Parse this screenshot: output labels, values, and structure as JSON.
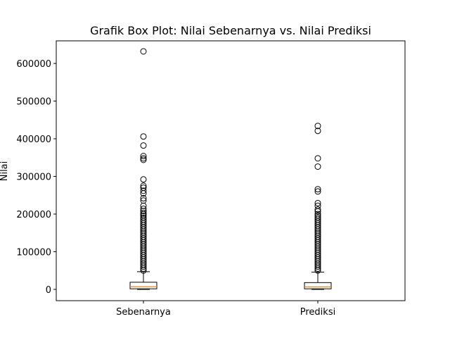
{
  "chart_data": {
    "type": "boxplot",
    "title": "Grafik Box Plot: Nilai Sebenarnya vs. Nilai Prediksi",
    "xlabel": "",
    "ylabel": "Nilai",
    "ylim": [
      -30000,
      660000
    ],
    "yticks": [
      0,
      100000,
      200000,
      300000,
      400000,
      500000,
      600000
    ],
    "ytick_labels": [
      "0",
      "100000",
      "200000",
      "300000",
      "400000",
      "500000",
      "600000"
    ],
    "categories": [
      "Sebenarnya",
      "Prediksi"
    ],
    "grid": false,
    "boxes": [
      {
        "category": "Sebenarnya",
        "whisker_low": 0,
        "q1": 1500,
        "median": 7000,
        "q3": 19000,
        "whisker_high": 47000,
        "outliers": [
          632000,
          406000,
          382000,
          354000,
          348000,
          344000,
          292000,
          275000,
          270000,
          262000,
          255000,
          242000,
          236000,
          222000,
          214000,
          208000,
          203000,
          199000,
          195000,
          190000,
          185000,
          180000,
          175000,
          170000,
          165000,
          160000,
          155000,
          150000,
          145000,
          140000,
          135000,
          130000,
          125000,
          120000,
          115000,
          110000,
          105000,
          100000,
          95000,
          90000,
          85000,
          80000,
          75000,
          70000,
          65000,
          60000,
          55000,
          50000
        ]
      },
      {
        "category": "Prediksi",
        "whisker_low": 0,
        "q1": 1500,
        "median": 6500,
        "q3": 18000,
        "whisker_high": 46000,
        "outliers": [
          434000,
          421000,
          348000,
          326000,
          266000,
          260000,
          229000,
          222000,
          212000,
          207000,
          200000,
          195000,
          190000,
          185000,
          180000,
          175000,
          170000,
          165000,
          160000,
          155000,
          150000,
          145000,
          140000,
          135000,
          130000,
          125000,
          120000,
          115000,
          110000,
          105000,
          100000,
          95000,
          90000,
          85000,
          80000,
          75000,
          70000,
          65000,
          60000,
          55000,
          50000
        ]
      }
    ],
    "colors": {
      "box": "#000000",
      "median": "#ff7f0e",
      "outlier": "#000000"
    }
  }
}
